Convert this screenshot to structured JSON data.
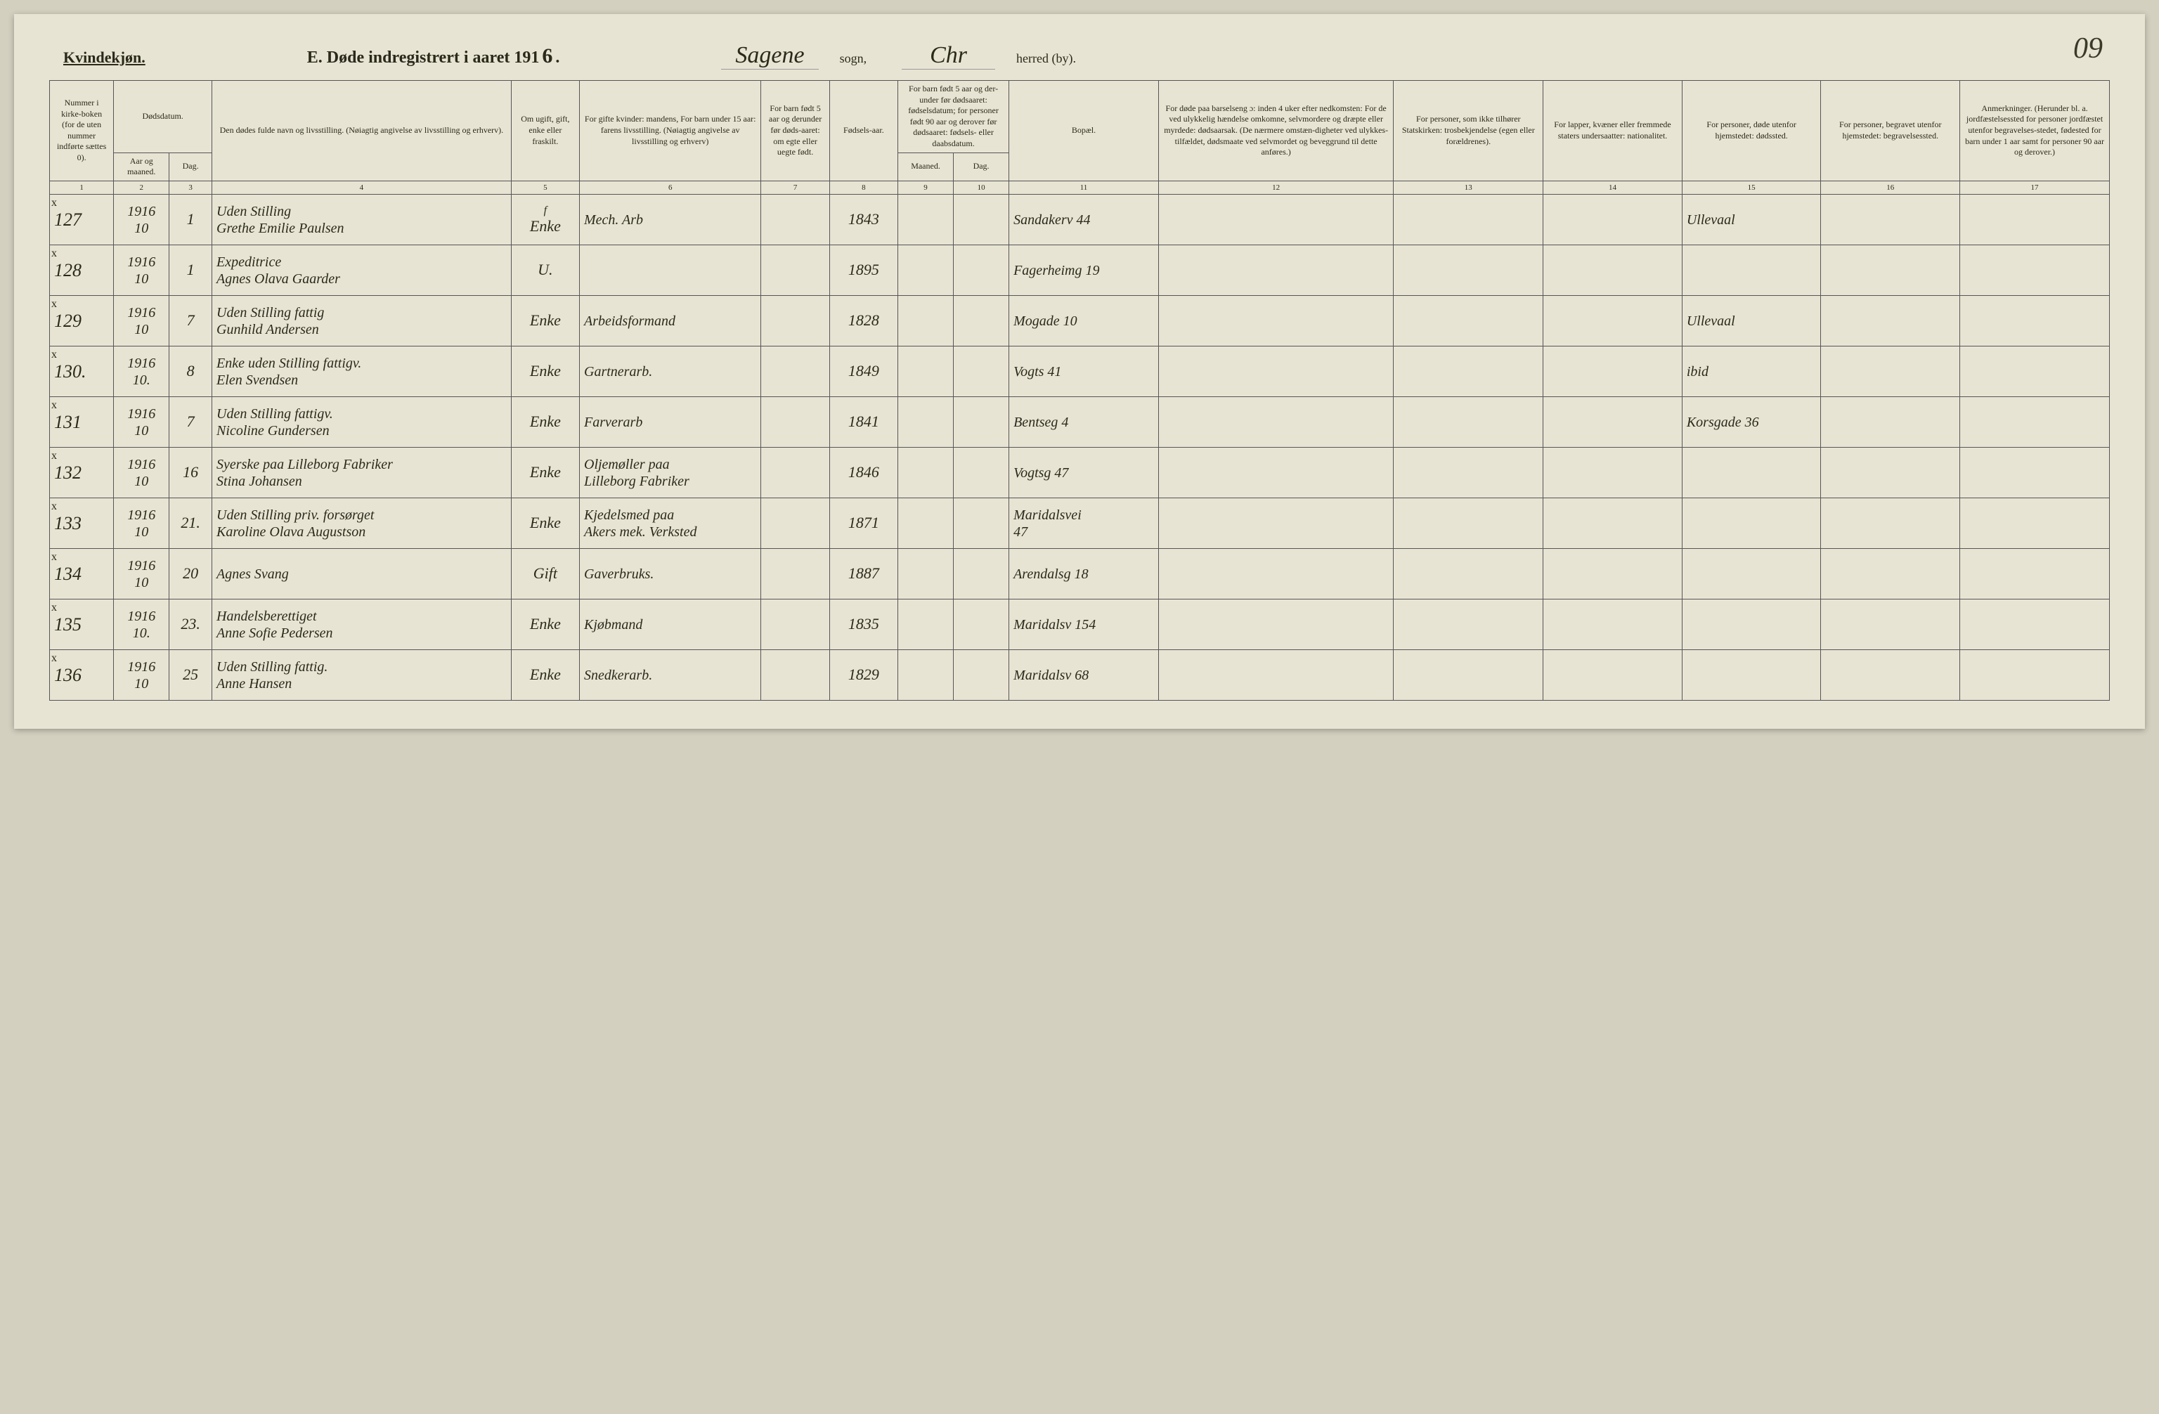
{
  "page_number": "09",
  "header": {
    "gender_label": "Kvindekjøn.",
    "title_prefix": "E.   Døde indregistrert i aaret 191",
    "year_hand": "6",
    "sogn_hand": "Sagene",
    "sogn_label": "sogn,",
    "herred_hand": "Chr",
    "herred_label": "herred (by)."
  },
  "colheads": {
    "c1": "Nummer i kirke-boken (for de uten nummer indførte sættes 0).",
    "c2a": "Dødsdatum.",
    "c2": "Aar og maaned.",
    "c3": "Dag.",
    "c4": "Den dødes fulde navn og livsstilling. (Nøiagtig angivelse av livsstilling og erhverv).",
    "c5": "Om ugift, gift, enke eller fraskilt.",
    "c6": "For gifte kvinder: mandens, For barn under 15 aar: farens livsstilling. (Nøiagtig angivelse av livsstilling og erhverv)",
    "c7": "For barn født 5 aar og derunder før døds-aaret: om egte eller uegte født.",
    "c8": "Fødsels-aar.",
    "c9a": "For barn født 5 aar og der-under før dødsaaret: fødselsdatum; for personer født 90 aar og derover før dødsaaret: fødsels- eller daabsdatum.",
    "c9": "Maaned.",
    "c10": "Dag.",
    "c11": "Bopæl.",
    "c12": "For døde paa barselseng ɔ: inden 4 uker efter nedkomsten: For de ved ulykkelig hændelse omkomne, selvmordere og dræpte eller myrdede: dødsaarsak. (De nærmere omstæn-digheter ved ulykkes-tilfældet, dødsmaate ved selvmordet og beveggrund til dette anføres.)",
    "c13": "For personer, som ikke tilhører Statskirken: trosbekjendelse (egen eller forældrenes).",
    "c14": "For lapper, kvæner eller fremmede staters undersaatter: nationalitet.",
    "c15": "For personer, døde utenfor hjemstedet: dødssted.",
    "c16": "For personer, begravet utenfor hjemstedet: begravelsessted.",
    "c17": "Anmerkninger. (Herunder bl. a. jordfæstelsessted for personer jordfæstet utenfor begravelses-stedet, fødested for barn under 1 aar samt for personer 90 aar og derover.)"
  },
  "colnums": [
    "1",
    "2",
    "3",
    "4",
    "5",
    "6",
    "7",
    "8",
    "9",
    "10",
    "11",
    "12",
    "13",
    "14",
    "15",
    "16",
    "17"
  ],
  "rows": [
    {
      "id": "127",
      "x": "x",
      "year_month": "1916\n10",
      "day": "1",
      "name": "Uden Stilling\nGrethe Emilie Paulsen",
      "status_top": "f",
      "status": "Enke",
      "spouse": "Mech. Arb",
      "c7": "",
      "birth": "1843",
      "c9": "",
      "c10": "",
      "residence": "Sandakerv 44",
      "c12": "",
      "c13": "",
      "c14": "",
      "deathplace": "Ullevaal",
      "c16": "",
      "c17": ""
    },
    {
      "id": "128",
      "x": "x",
      "year_month": "1916\n10",
      "day": "1",
      "name": "Expeditrice\nAgnes Olava Gaarder",
      "status_top": "",
      "status": "U.",
      "spouse": "",
      "c7": "",
      "birth": "1895",
      "c9": "",
      "c10": "",
      "residence": "Fagerheimg 19",
      "c12": "",
      "c13": "",
      "c14": "",
      "deathplace": "",
      "c16": "",
      "c17": ""
    },
    {
      "id": "129",
      "x": "x",
      "year_month": "1916\n10",
      "day": "7",
      "name": "Uden Stilling  fattig\nGunhild Andersen",
      "status_top": "",
      "status": "Enke",
      "spouse": "Arbeidsformand",
      "c7": "",
      "birth": "1828",
      "c9": "",
      "c10": "",
      "residence": "Mogade 10",
      "c12": "",
      "c13": "",
      "c14": "",
      "deathplace": "Ullevaal",
      "c16": "",
      "c17": ""
    },
    {
      "id": "130.",
      "x": "x",
      "year_month": "1916\n10.",
      "day": "8",
      "name": "Enke uden Stilling fattigv.\nElen Svendsen",
      "status_top": "",
      "status": "Enke",
      "spouse": "Gartnerarb.",
      "c7": "",
      "birth": "1849",
      "c9": "",
      "c10": "",
      "residence": "Vogts 41",
      "c12": "",
      "c13": "",
      "c14": "",
      "deathplace": "ibid",
      "c16": "",
      "c17": ""
    },
    {
      "id": "131",
      "x": "x",
      "year_month": "1916\n10",
      "day": "7",
      "name": "Uden Stilling  fattigv.\nNicoline Gundersen",
      "status_top": "",
      "status": "Enke",
      "spouse": "Farverarb",
      "c7": "",
      "birth": "1841",
      "c9": "",
      "c10": "",
      "residence": "Bentseg 4",
      "c12": "",
      "c13": "",
      "c14": "",
      "deathplace": "Korsgade 36",
      "c16": "",
      "c17": ""
    },
    {
      "id": "132",
      "x": "x",
      "year_month": "1916\n10",
      "day": "16",
      "name": "Syerske paa Lilleborg Fabriker\nStina Johansen",
      "status_top": "",
      "status": "Enke",
      "spouse": "Oljemøller paa\nLilleborg Fabriker",
      "c7": "",
      "birth": "1846",
      "c9": "",
      "c10": "",
      "residence": "Vogtsg 47",
      "c12": "",
      "c13": "",
      "c14": "",
      "deathplace": "",
      "c16": "",
      "c17": ""
    },
    {
      "id": "133",
      "x": "x",
      "year_month": "1916\n10",
      "day": "21.",
      "name": "Uden Stilling  priv. forsørget\nKaroline Olava Augustson",
      "status_top": "",
      "status": "Enke",
      "spouse": "Kjedelsmed paa\nAkers mek. Verksted",
      "c7": "",
      "birth": "1871",
      "c9": "",
      "c10": "",
      "residence": "Maridalsvei\n47",
      "c12": "",
      "c13": "",
      "c14": "",
      "deathplace": "",
      "c16": "",
      "c17": ""
    },
    {
      "id": "134",
      "x": "x",
      "year_month": "1916\n10",
      "day": "20",
      "name": "Agnes Svang",
      "status_top": "",
      "status": "Gift",
      "spouse": "Gaverbruks.",
      "c7": "",
      "birth": "1887",
      "c9": "",
      "c10": "",
      "residence": "Arendalsg 18",
      "c12": "",
      "c13": "",
      "c14": "",
      "deathplace": "",
      "c16": "",
      "c17": ""
    },
    {
      "id": "135",
      "x": "x",
      "year_month": "1916\n10.",
      "day": "23.",
      "name": "Handelsberettiget\nAnne Sofie Pedersen",
      "status_top": "",
      "status": "Enke",
      "spouse": "Kjøbmand",
      "c7": "",
      "birth": "1835",
      "c9": "",
      "c10": "",
      "residence": "Maridalsv 154",
      "c12": "",
      "c13": "",
      "c14": "",
      "deathplace": "",
      "c16": "",
      "c17": ""
    },
    {
      "id": "136",
      "x": "x",
      "year_month": "1916\n10",
      "day": "25",
      "name": "Uden Stilling  fattig.\nAnne Hansen",
      "status_top": "",
      "status": "Enke",
      "spouse": "Snedkerarb.",
      "c7": "",
      "birth": "1829",
      "c9": "",
      "c10": "",
      "residence": "Maridalsv 68",
      "c12": "",
      "c13": "",
      "c14": "",
      "deathplace": "",
      "c16": "",
      "c17": ""
    }
  ],
  "style": {
    "page_bg": "#e8e4d4",
    "body_bg": "#d4d0c0",
    "ink": "#2a2a1a",
    "border": "#555555",
    "hand_font": "Brush Script MT, cursive",
    "print_font": "Georgia, Times New Roman, serif"
  }
}
